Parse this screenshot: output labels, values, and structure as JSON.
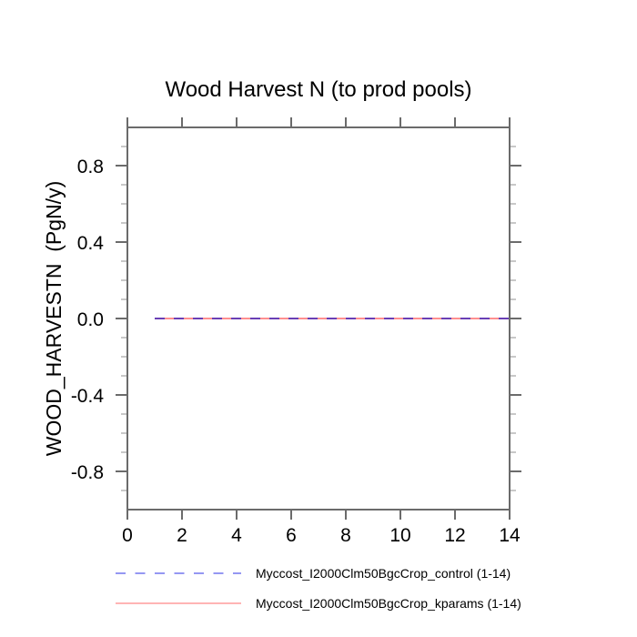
{
  "chart_data": {
    "type": "line",
    "title": "Wood Harvest N (to prod pools)",
    "ylabel": "WOOD_HARVESTN  (PgN/y)",
    "xlabel": "",
    "xlim": [
      0,
      14
    ],
    "ylim": [
      -1.0,
      1.0
    ],
    "x_major_ticks": [
      0,
      2,
      4,
      6,
      8,
      10,
      12,
      14
    ],
    "y_major_ticks": [
      -0.8,
      -0.4,
      0.0,
      0.4,
      0.8
    ],
    "y_minor_step": 0.1,
    "grid": false,
    "legend_position": "bottom",
    "frame_color": "#6b6b6b",
    "minor_tick_color": "#a3a3a3",
    "series": [
      {
        "name": "Myccost_I2000Clm50BgcCrop_control (1-14)",
        "style": "dashed",
        "color": "#6a3fb5",
        "legend_color": "#9597f2",
        "x": [
          1,
          2,
          3,
          4,
          5,
          6,
          7,
          8,
          9,
          10,
          11,
          12,
          13,
          14
        ],
        "values": [
          0,
          0,
          0,
          0,
          0,
          0,
          0,
          0,
          0,
          0,
          0,
          0,
          0,
          0
        ]
      },
      {
        "name": "Myccost_I2000Clm50BgcCrop_kparams (1-14)",
        "style": "solid",
        "color": "#ff8f8f",
        "legend_color": "#ff9c9c",
        "x": [
          1,
          2,
          3,
          4,
          5,
          6,
          7,
          8,
          9,
          10,
          11,
          12,
          13,
          14
        ],
        "values": [
          0,
          0,
          0,
          0,
          0,
          0,
          0,
          0,
          0,
          0,
          0,
          0,
          0,
          0
        ]
      }
    ]
  }
}
